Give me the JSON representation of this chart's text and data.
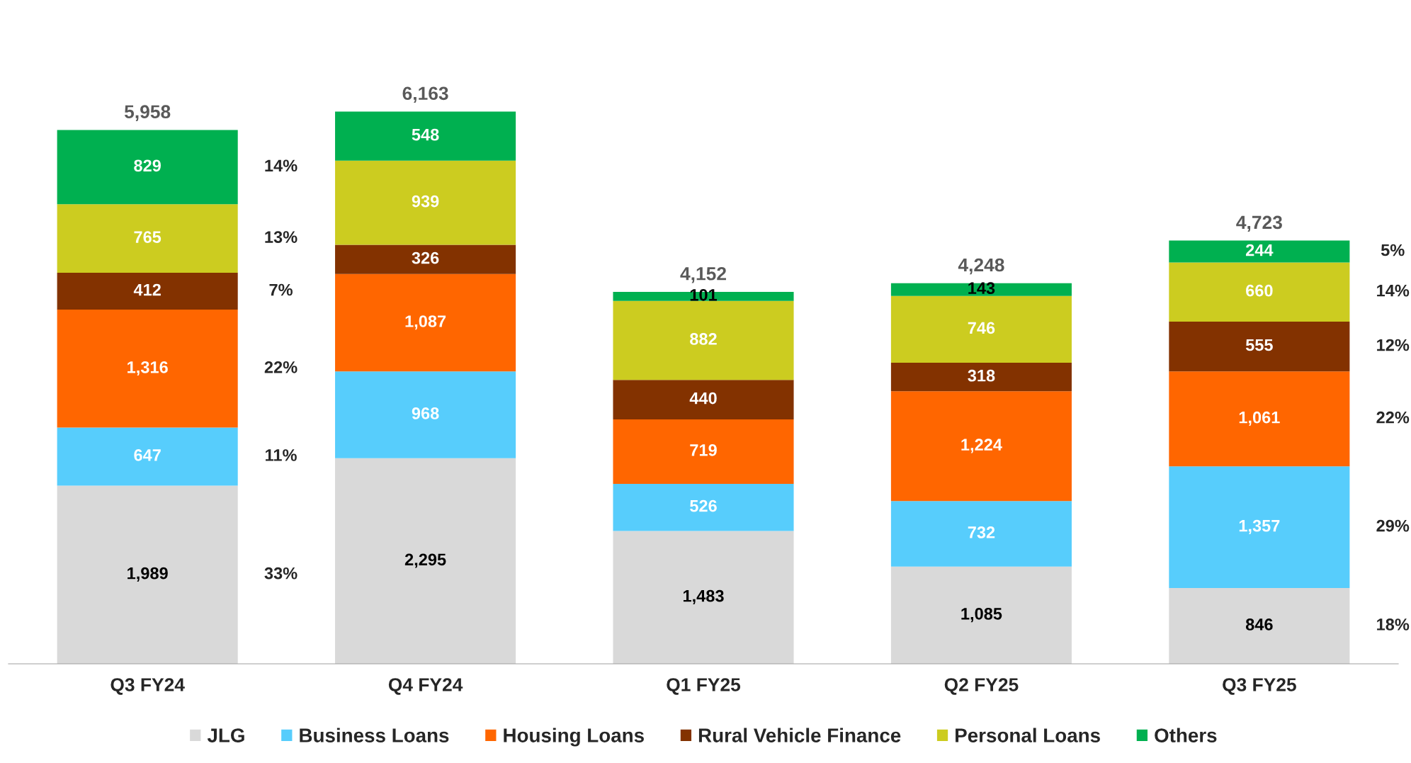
{
  "chart_data": {
    "type": "bar",
    "stacked": true,
    "legend": "bottom",
    "grid": false,
    "categories": [
      "Q3 FY24",
      "Q4 FY24",
      "Q1 FY25",
      "Q2 FY25",
      "Q3 FY25"
    ],
    "series": [
      {
        "name": "JLG",
        "color": "#d9d9d9",
        "values": [
          1989,
          2295,
          1483,
          1085,
          846
        ],
        "value_labels": [
          "1,989",
          "2,295",
          "1,483",
          "1,085",
          "846"
        ]
      },
      {
        "name": "Business Loans",
        "color": "#57cdfc",
        "values": [
          647,
          968,
          526,
          732,
          1357
        ],
        "value_labels": [
          "647",
          "968",
          "526",
          "732",
          "1,357"
        ]
      },
      {
        "name": "Housing Loans",
        "color": "#ff6600",
        "values": [
          1316,
          1087,
          719,
          1224,
          1061
        ],
        "value_labels": [
          "1,316",
          "1,087",
          "719",
          "1,224",
          "1,061"
        ]
      },
      {
        "name": "Rural Vehicle Finance",
        "color": "#833200",
        "values": [
          412,
          326,
          440,
          318,
          555
        ],
        "value_labels": [
          "412",
          "326",
          "440",
          "318",
          "555"
        ]
      },
      {
        "name": "Personal Loans",
        "color": "#cccc20",
        "values": [
          765,
          939,
          882,
          746,
          660
        ],
        "value_labels": [
          "765",
          "939",
          "882",
          "746",
          "660"
        ]
      },
      {
        "name": "Others",
        "color": "#00b050",
        "values": [
          829,
          548,
          101,
          143,
          244
        ],
        "value_labels": [
          "829",
          "548",
          "101",
          "143",
          "244"
        ]
      }
    ],
    "totals": [
      "5,958",
      "6,163",
      "4,152",
      "4,248",
      "4,723"
    ],
    "annotations": [
      "33%",
      "11%",
      "22%",
      "7%",
      "13%",
      "14%",
      "18%",
      "29%",
      "22%",
      "12%",
      "14%",
      "5%"
    ]
  }
}
